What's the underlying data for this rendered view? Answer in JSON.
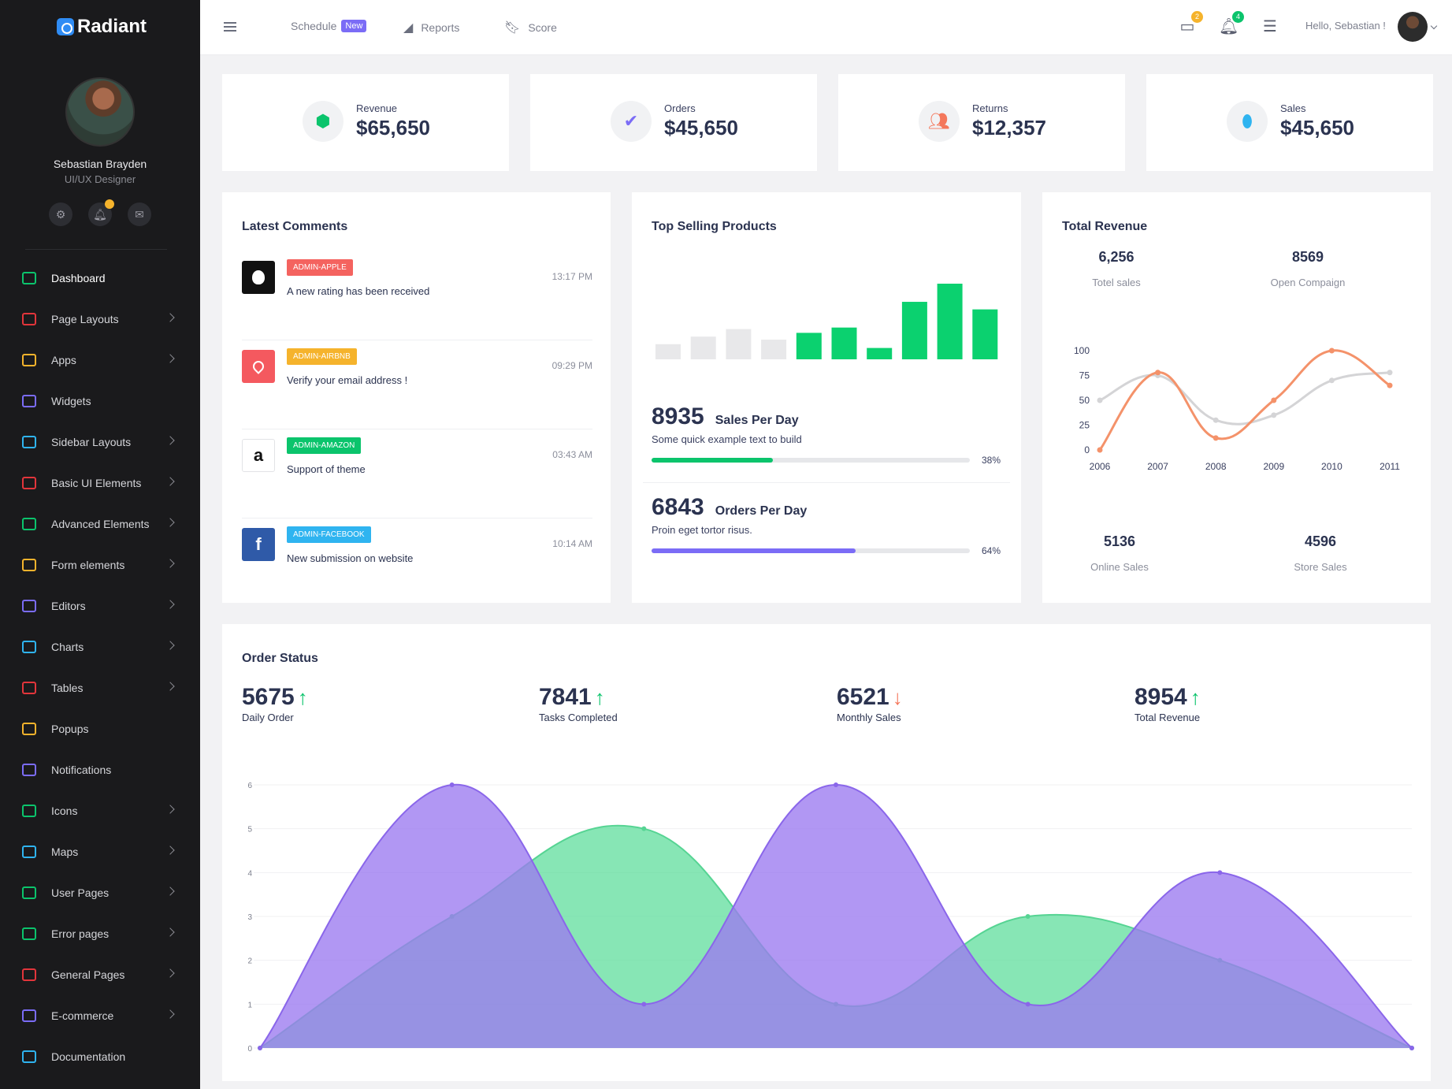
{
  "brand": {
    "name": "Radiant"
  },
  "profile": {
    "name": "Sebastian Brayden",
    "role": "UI/UX Designer"
  },
  "sidebar": {
    "items": [
      {
        "label": "Dashboard",
        "icon": "dashboard-icon",
        "color": "#0bc46c",
        "chevron": false,
        "active": true
      },
      {
        "label": "Page Layouts",
        "icon": "page-layouts-icon",
        "color": "#e2353b",
        "chevron": true
      },
      {
        "label": "Apps",
        "icon": "apps-icon",
        "color": "#f5b32c",
        "chevron": true
      },
      {
        "label": "Widgets",
        "icon": "widgets-icon",
        "color": "#7b6cf6",
        "chevron": false
      },
      {
        "label": "Sidebar Layouts",
        "icon": "sidebar-layouts-icon",
        "color": "#2fb4f0",
        "chevron": true
      },
      {
        "label": "Basic UI Elements",
        "icon": "trophy-icon",
        "color": "#e2353b",
        "chevron": true
      },
      {
        "label": "Advanced Elements",
        "icon": "advanced-elements-icon",
        "color": "#0bc46c",
        "chevron": true
      },
      {
        "label": "Form elements",
        "icon": "form-elements-icon",
        "color": "#f5b32c",
        "chevron": true
      },
      {
        "label": "Editors",
        "icon": "editors-icon",
        "color": "#7b6cf6",
        "chevron": true
      },
      {
        "label": "Charts",
        "icon": "charts-icon",
        "color": "#2fb4f0",
        "chevron": true
      },
      {
        "label": "Tables",
        "icon": "tables-icon",
        "color": "#e2353b",
        "chevron": true
      },
      {
        "label": "Popups",
        "icon": "megaphone-icon",
        "color": "#f5b32c",
        "chevron": false
      },
      {
        "label": "Notifications",
        "icon": "bell-icon",
        "color": "#7b6cf6",
        "chevron": false
      },
      {
        "label": "Icons",
        "icon": "icons-icon",
        "color": "#0bc46c",
        "chevron": true
      },
      {
        "label": "Maps",
        "icon": "map-icon",
        "color": "#2fb4f0",
        "chevron": true
      },
      {
        "label": "User Pages",
        "icon": "user-pages-icon",
        "color": "#0bc46c",
        "chevron": true
      },
      {
        "label": "Error pages",
        "icon": "flag-icon",
        "color": "#0bc46c",
        "chevron": true
      },
      {
        "label": "General Pages",
        "icon": "lightbulb-icon",
        "color": "#e2353b",
        "chevron": true
      },
      {
        "label": "E-commerce",
        "icon": "ecommerce-icon",
        "color": "#7b6cf6",
        "chevron": true
      },
      {
        "label": "Documentation",
        "icon": "gear-icon",
        "color": "#2fb4f0",
        "chevron": false
      }
    ]
  },
  "topbar": {
    "links": [
      {
        "label": "Schedule",
        "badge": "New"
      },
      {
        "label": "Reports"
      },
      {
        "label": "Score"
      }
    ],
    "messages_count": "2",
    "notifications_count": "4",
    "greeting": "Hello, Sebastian !"
  },
  "stats": [
    {
      "label": "Revenue",
      "value": "$65,650",
      "icon": "cube-icon",
      "color": "#0bc46c"
    },
    {
      "label": "Orders",
      "value": "$45,650",
      "icon": "briefcase-check-icon",
      "color": "#7b6cf6"
    },
    {
      "label": "Returns",
      "value": "$12,357",
      "icon": "users-icon",
      "color": "#f4775b"
    },
    {
      "label": "Sales",
      "value": "$45,650",
      "icon": "balloon-icon",
      "color": "#2fb4f0"
    }
  ],
  "comments": {
    "title": "Latest Comments",
    "items": [
      {
        "tag": "ADMIN-APPLE",
        "tag_color": "#f4635f",
        "text": "A new rating has been received",
        "time": "13:17 PM",
        "logo": "apple-logo",
        "logo_bg": "#111111",
        "logo_glyph": ""
      },
      {
        "tag": "ADMIN-AIRBNB",
        "tag_color": "#f5b32c",
        "text": "Verify your email address !",
        "time": "09:29 PM",
        "logo": "airbnb-logo",
        "logo_bg": "#f4595f",
        "logo_glyph": ""
      },
      {
        "tag": "ADMIN-AMAZON",
        "tag_color": "#0bc46c",
        "text": "Support of theme",
        "time": "03:43 AM",
        "logo": "amazon-logo",
        "logo_bg": "#ffffff",
        "logo_glyph": "a"
      },
      {
        "tag": "ADMIN-FACEBOOK",
        "tag_color": "#2fb4f0",
        "text": "New submission on website",
        "time": "10:14 AM",
        "logo": "facebook-logo",
        "logo_bg": "#2f5aa8",
        "logo_glyph": "f"
      }
    ]
  },
  "top_selling": {
    "title": "Top Selling Products",
    "sales_per_day": {
      "value": "8935",
      "title": "Sales Per Day",
      "sub": "Some quick example text to build",
      "percent": 38,
      "percent_label": "38%"
    },
    "orders_per_day": {
      "value": "6843",
      "title": "Orders Per Day",
      "sub": "Proin eget tortor risus.",
      "percent": 64,
      "percent_label": "64%"
    }
  },
  "total_revenue": {
    "title": "Total Revenue",
    "total_sales": {
      "value": "6,256",
      "label": "Totel sales"
    },
    "open_campaign": {
      "value": "8569",
      "label": "Open Compaign"
    },
    "online_sales": {
      "value": "5136",
      "label": "Online Sales"
    },
    "store_sales": {
      "value": "4596",
      "label": "Store Sales"
    }
  },
  "order_status": {
    "title": "Order Status",
    "stats": [
      {
        "value": "5675",
        "label": "Daily Order",
        "trend": "up",
        "color": "#0bc46c"
      },
      {
        "value": "7841",
        "label": "Tasks Completed",
        "trend": "up",
        "color": "#0bc46c"
      },
      {
        "value": "6521",
        "label": "Monthly Sales",
        "trend": "down",
        "color": "#f4775b"
      },
      {
        "value": "8954",
        "label": "Total Revenue",
        "trend": "up",
        "color": "#0bc46c"
      }
    ]
  },
  "chart_data": [
    {
      "type": "bar",
      "name": "top-selling-bars",
      "values": [
        2,
        3,
        4,
        2.6,
        3.5,
        4.2,
        1.5,
        7.6,
        10,
        6.6
      ],
      "highlight_from_index": 4,
      "colors": {
        "muted": "#e8e8ea",
        "highlight": "#0bd16f"
      }
    },
    {
      "type": "line",
      "name": "total-revenue-line",
      "categories": [
        "2006",
        "2007",
        "2008",
        "2009",
        "2010",
        "2011"
      ],
      "ylim": [
        0,
        100
      ],
      "yticks": [
        0,
        25,
        50,
        75,
        100
      ],
      "series": [
        {
          "values": [
            50,
            75,
            30,
            35,
            70,
            78
          ],
          "color": "#d4d4d6"
        },
        {
          "values": [
            0,
            78,
            12,
            50,
            100,
            65
          ],
          "color": "#f4926a"
        }
      ]
    },
    {
      "type": "area",
      "name": "order-status-area",
      "x": [
        0,
        1,
        2,
        3,
        4,
        5,
        6
      ],
      "ylim": [
        0,
        6
      ],
      "yticks": [
        0,
        1,
        2,
        3,
        4,
        5,
        6
      ],
      "series": [
        {
          "values": [
            0,
            6,
            1,
            6,
            1,
            4,
            0
          ],
          "color": "#9b7af0"
        },
        {
          "values": [
            0,
            3,
            5,
            1,
            3,
            2,
            0
          ],
          "color": "#5fdd9c"
        }
      ]
    }
  ]
}
